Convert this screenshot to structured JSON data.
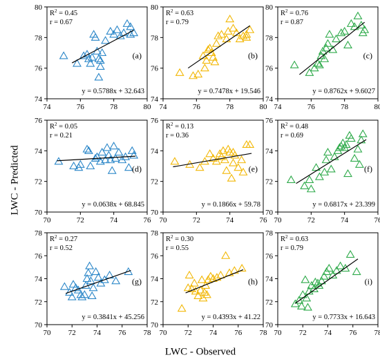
{
  "figure": {
    "ylabel": "LWC - Predicted",
    "xlabel": "LWC - Observed"
  },
  "colors": {
    "a": "#2a86c8",
    "b": "#f2b705",
    "c": "#2eaa4a",
    "fit": "#000000"
  },
  "chart_data": [
    {
      "id": "a",
      "type": "scatter",
      "panel_label": "(a)",
      "color": "#2a86c8",
      "xlim": [
        74,
        80
      ],
      "ylim": [
        74,
        80
      ],
      "xticks": [
        74,
        76,
        78,
        80
      ],
      "yticks": [
        74,
        76,
        78,
        80
      ],
      "r2": "0.45",
      "r": "0.67",
      "equation": "y = 0.5788x + 32.643",
      "slope": 0.5788,
      "intercept": 32.643,
      "fit_x": [
        75.5,
        79.2
      ],
      "points": [
        [
          75.0,
          76.8
        ],
        [
          75.8,
          76.3
        ],
        [
          76.2,
          76.8
        ],
        [
          76.4,
          76.9
        ],
        [
          76.5,
          76.6
        ],
        [
          76.6,
          76.3
        ],
        [
          76.7,
          76.7
        ],
        [
          76.8,
          78.2
        ],
        [
          76.9,
          78.0
        ],
        [
          77.0,
          77.1
        ],
        [
          77.1,
          76.6
        ],
        [
          77.2,
          76.5
        ],
        [
          77.1,
          75.4
        ],
        [
          77.2,
          76.1
        ],
        [
          77.3,
          77.0
        ],
        [
          77.5,
          77.8
        ],
        [
          77.8,
          78.4
        ],
        [
          78.0,
          78.2
        ],
        [
          78.2,
          78.5
        ],
        [
          78.4,
          78.1
        ],
        [
          78.6,
          78.3
        ],
        [
          78.8,
          78.9
        ],
        [
          79.0,
          78.7
        ],
        [
          79.2,
          78.3
        ],
        [
          79.0,
          78.2
        ]
      ]
    },
    {
      "id": "b",
      "type": "scatter",
      "panel_label": "(b)",
      "color": "#f2b705",
      "xlim": [
        74,
        80
      ],
      "ylim": [
        74,
        80
      ],
      "xticks": [
        74,
        76,
        78,
        80
      ],
      "yticks": [
        74,
        76,
        78,
        80
      ],
      "r2": "0.63",
      "r": "0.79",
      "equation": "y = 0.7478x + 19.546",
      "slope": 0.7478,
      "intercept": 19.546,
      "fit_x": [
        75.5,
        79.2
      ],
      "points": [
        [
          75.0,
          75.7
        ],
        [
          75.8,
          75.5
        ],
        [
          76.1,
          75.6
        ],
        [
          76.4,
          76.8
        ],
        [
          76.5,
          76.0
        ],
        [
          76.6,
          76.5
        ],
        [
          76.7,
          77.2
        ],
        [
          76.8,
          77.3
        ],
        [
          76.9,
          77.0
        ],
        [
          77.0,
          76.7
        ],
        [
          77.1,
          76.4
        ],
        [
          77.2,
          77.6
        ],
        [
          77.3,
          78.1
        ],
        [
          77.5,
          78.2
        ],
        [
          77.8,
          77.9
        ],
        [
          78.0,
          79.2
        ],
        [
          78.2,
          78.6
        ],
        [
          78.4,
          78.3
        ],
        [
          78.6,
          77.9
        ],
        [
          78.8,
          78.1
        ],
        [
          79.0,
          78.2
        ],
        [
          79.2,
          78.5
        ],
        [
          79.0,
          78.0
        ],
        [
          77.9,
          78.4
        ]
      ]
    },
    {
      "id": "c",
      "type": "scatter",
      "panel_label": "(c)",
      "color": "#2eaa4a",
      "xlim": [
        74,
        80
      ],
      "ylim": [
        74,
        80
      ],
      "xticks": [
        74,
        76,
        78,
        80
      ],
      "yticks": [
        74,
        76,
        78,
        80
      ],
      "r2": "0.76",
      "r": "0.87",
      "equation": "y = 0.8762x + 9.6027",
      "slope": 0.8762,
      "intercept": 9.6027,
      "fit_x": [
        75.3,
        79.2
      ],
      "points": [
        [
          75.0,
          76.2
        ],
        [
          75.9,
          75.7
        ],
        [
          76.2,
          76.0
        ],
        [
          76.4,
          76.3
        ],
        [
          76.5,
          76.2
        ],
        [
          76.6,
          76.8
        ],
        [
          76.7,
          77.1
        ],
        [
          76.8,
          76.6
        ],
        [
          76.9,
          77.3
        ],
        [
          77.0,
          77.6
        ],
        [
          77.1,
          78.2
        ],
        [
          77.3,
          77.2
        ],
        [
          77.5,
          77.9
        ],
        [
          77.8,
          78.3
        ],
        [
          78.0,
          78.4
        ],
        [
          78.2,
          77.5
        ],
        [
          78.4,
          78.9
        ],
        [
          78.6,
          78.7
        ],
        [
          78.8,
          79.4
        ],
        [
          79.0,
          78.8
        ],
        [
          79.2,
          78.5
        ],
        [
          79.1,
          78.3
        ]
      ]
    },
    {
      "id": "d",
      "type": "scatter",
      "panel_label": "(d)",
      "color": "#2a86c8",
      "xlim": [
        70,
        76
      ],
      "ylim": [
        70,
        76
      ],
      "xticks": [
        70,
        72,
        74,
        76
      ],
      "yticks": [
        70,
        72,
        74,
        76
      ],
      "r2": "0.05",
      "r": "0.21",
      "equation": "y = 0.0638x + 68.845",
      "slope": 0.0638,
      "intercept": 68.845,
      "fit_x": [
        70.6,
        75.3
      ],
      "points": [
        [
          70.7,
          73.3
        ],
        [
          71.6,
          73.0
        ],
        [
          71.9,
          72.9
        ],
        [
          72.0,
          73.1
        ],
        [
          72.4,
          74.1
        ],
        [
          72.5,
          74.0
        ],
        [
          72.6,
          73.0
        ],
        [
          72.9,
          73.5
        ],
        [
          73.0,
          73.6
        ],
        [
          73.2,
          73.3
        ],
        [
          73.3,
          73.9
        ],
        [
          73.5,
          73.4
        ],
        [
          73.6,
          74.2
        ],
        [
          73.7,
          73.7
        ],
        [
          73.8,
          73.4
        ],
        [
          73.9,
          72.7
        ],
        [
          74.0,
          74.3
        ],
        [
          74.1,
          73.5
        ],
        [
          74.3,
          73.9
        ],
        [
          74.5,
          73.4
        ],
        [
          74.7,
          73.6
        ],
        [
          74.9,
          72.9
        ],
        [
          75.1,
          74.0
        ],
        [
          75.2,
          73.7
        ]
      ]
    },
    {
      "id": "e",
      "type": "scatter",
      "panel_label": "(e)",
      "color": "#f2b705",
      "xlim": [
        70,
        76
      ],
      "ylim": [
        70,
        76
      ],
      "xticks": [
        70,
        72,
        74,
        76
      ],
      "yticks": [
        70,
        72,
        74,
        76
      ],
      "r2": "0.13",
      "r": "0.36",
      "equation": "y = 0.1866x + 59.78",
      "slope": 0.1866,
      "intercept": 59.78,
      "fit_x": [
        70.6,
        75.3
      ],
      "points": [
        [
          70.7,
          73.3
        ],
        [
          71.6,
          73.1
        ],
        [
          72.2,
          72.9
        ],
        [
          72.5,
          73.3
        ],
        [
          72.8,
          73.8
        ],
        [
          73.0,
          73.5
        ],
        [
          73.2,
          73.3
        ],
        [
          73.4,
          73.8
        ],
        [
          73.5,
          73.6
        ],
        [
          73.6,
          74.0
        ],
        [
          73.7,
          73.4
        ],
        [
          73.8,
          72.7
        ],
        [
          73.9,
          74.1
        ],
        [
          74.0,
          73.9
        ],
        [
          74.1,
          72.2
        ],
        [
          74.2,
          73.2
        ],
        [
          74.3,
          73.7
        ],
        [
          74.5,
          72.9
        ],
        [
          74.7,
          73.4
        ],
        [
          74.8,
          72.6
        ],
        [
          75.0,
          74.4
        ],
        [
          75.2,
          74.4
        ],
        [
          74.2,
          73.9
        ]
      ]
    },
    {
      "id": "f",
      "type": "scatter",
      "panel_label": "(f)",
      "color": "#2eaa4a",
      "xlim": [
        70,
        76
      ],
      "ylim": [
        70,
        76
      ],
      "xticks": [
        70,
        72,
        74,
        76
      ],
      "yticks": [
        70,
        72,
        74,
        76
      ],
      "r2": "0.48",
      "r": "0.69",
      "equation": "y = 0.6817x + 23.399",
      "slope": 0.6817,
      "intercept": 23.399,
      "fit_x": [
        71.1,
        75.3
      ],
      "points": [
        [
          70.8,
          72.1
        ],
        [
          71.6,
          71.7
        ],
        [
          71.9,
          72.1
        ],
        [
          72.0,
          71.5
        ],
        [
          72.3,
          72.9
        ],
        [
          72.5,
          72.3
        ],
        [
          72.8,
          72.6
        ],
        [
          72.9,
          73.4
        ],
        [
          73.0,
          73.9
        ],
        [
          73.2,
          72.8
        ],
        [
          73.4,
          73.6
        ],
        [
          73.6,
          74.0
        ],
        [
          73.7,
          74.2
        ],
        [
          73.8,
          74.3
        ],
        [
          73.9,
          74.5
        ],
        [
          74.0,
          74.2
        ],
        [
          74.1,
          74.4
        ],
        [
          74.3,
          75.0
        ],
        [
          74.4,
          74.8
        ],
        [
          74.6,
          73.5
        ],
        [
          74.8,
          74.1
        ],
        [
          75.0,
          74.7
        ],
        [
          75.1,
          75.1
        ],
        [
          74.9,
          73.1
        ],
        [
          74.2,
          72.5
        ]
      ]
    },
    {
      "id": "g",
      "type": "scatter",
      "panel_label": "(g)",
      "color": "#2a86c8",
      "xlim": [
        70,
        78
      ],
      "ylim": [
        70,
        78
      ],
      "xticks": [
        70,
        72,
        74,
        76,
        78
      ],
      "yticks": [
        70,
        72,
        74,
        76,
        78
      ],
      "r2": "0.27",
      "r": "0.52",
      "equation": "y = 0.3841x + 45.256",
      "slope": 0.3841,
      "intercept": 45.256,
      "fit_x": [
        71.5,
        76.7
      ],
      "points": [
        [
          71.4,
          73.3
        ],
        [
          71.8,
          72.8
        ],
        [
          72.0,
          72.4
        ],
        [
          72.1,
          73.5
        ],
        [
          72.3,
          73.2
        ],
        [
          72.5,
          73.0
        ],
        [
          72.7,
          72.6
        ],
        [
          72.8,
          72.4
        ],
        [
          73.0,
          72.6
        ],
        [
          73.1,
          73.4
        ],
        [
          73.2,
          74.0
        ],
        [
          73.3,
          74.5
        ],
        [
          73.4,
          75.1
        ],
        [
          73.5,
          73.8
        ],
        [
          73.7,
          73.2
        ],
        [
          73.9,
          74.6
        ],
        [
          74.1,
          74.1
        ],
        [
          74.3,
          73.6
        ],
        [
          74.6,
          73.9
        ],
        [
          75.0,
          74.3
        ],
        [
          75.5,
          73.8
        ],
        [
          76.5,
          74.6
        ],
        [
          73.6,
          72.5
        ]
      ]
    },
    {
      "id": "h",
      "type": "scatter",
      "panel_label": "(h)",
      "color": "#f2b705",
      "xlim": [
        70,
        78
      ],
      "ylim": [
        70,
        78
      ],
      "xticks": [
        70,
        72,
        74,
        76,
        78
      ],
      "yticks": [
        70,
        72,
        74,
        76,
        78
      ],
      "r2": "0.30",
      "r": "0.55",
      "equation": "y = 0.4393x + 41.22",
      "slope": 0.4393,
      "intercept": 41.22,
      "fit_x": [
        71.8,
        76.4
      ],
      "points": [
        [
          71.5,
          71.4
        ],
        [
          72.0,
          73.2
        ],
        [
          72.1,
          74.3
        ],
        [
          72.3,
          73.1
        ],
        [
          72.5,
          73.6
        ],
        [
          72.6,
          72.9
        ],
        [
          72.8,
          72.5
        ],
        [
          73.0,
          73.0
        ],
        [
          73.1,
          73.9
        ],
        [
          73.3,
          72.8
        ],
        [
          73.4,
          73.4
        ],
        [
          73.5,
          72.6
        ],
        [
          73.6,
          73.9
        ],
        [
          73.8,
          74.2
        ],
        [
          74.0,
          74.0
        ],
        [
          74.3,
          74.1
        ],
        [
          74.6,
          74.3
        ],
        [
          75.0,
          76.0
        ],
        [
          75.3,
          74.5
        ],
        [
          75.7,
          74.7
        ],
        [
          76.3,
          74.9
        ],
        [
          73.2,
          72.3
        ]
      ]
    },
    {
      "id": "i",
      "type": "scatter",
      "panel_label": "(i)",
      "color": "#2eaa4a",
      "xlim": [
        70,
        78
      ],
      "ylim": [
        70,
        78
      ],
      "xticks": [
        70,
        72,
        74,
        76,
        78
      ],
      "yticks": [
        70,
        72,
        74,
        76,
        78
      ],
      "r2": "0.63",
      "r": "0.79",
      "equation": "y = 0.7733x + 16.643",
      "slope": 0.7733,
      "intercept": 16.643,
      "fit_x": [
        71.4,
        76.4
      ],
      "points": [
        [
          71.4,
          71.8
        ],
        [
          71.7,
          72.1
        ],
        [
          71.9,
          71.6
        ],
        [
          72.0,
          72.6
        ],
        [
          72.2,
          73.9
        ],
        [
          72.3,
          72.3
        ],
        [
          72.5,
          72.9
        ],
        [
          72.7,
          73.4
        ],
        [
          72.9,
          73.1
        ],
        [
          73.0,
          73.7
        ],
        [
          73.2,
          73.6
        ],
        [
          73.3,
          73.4
        ],
        [
          73.5,
          73.8
        ],
        [
          73.7,
          74.2
        ],
        [
          73.9,
          74.6
        ],
        [
          74.1,
          74.9
        ],
        [
          74.4,
          74.3
        ],
        [
          74.7,
          74.7
        ],
        [
          75.0,
          75.1
        ],
        [
          75.4,
          74.9
        ],
        [
          75.8,
          76.1
        ],
        [
          76.3,
          74.6
        ],
        [
          72.4,
          71.5
        ]
      ]
    }
  ]
}
